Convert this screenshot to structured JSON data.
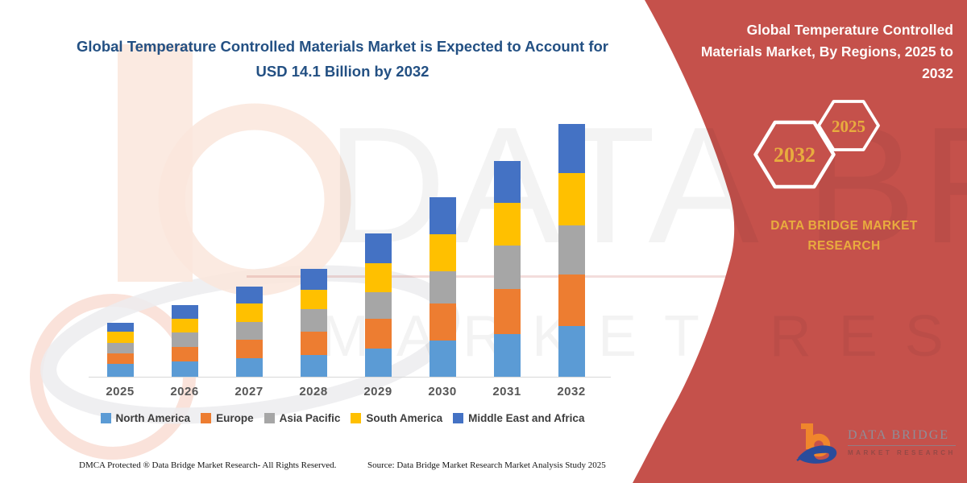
{
  "header": {
    "title": "Global Temperature Controlled Materials Market is Expected to Account for USD 14.1 Billion by 2032"
  },
  "sidebar": {
    "title": "Global Temperature Controlled Materials Market, By Regions, 2025 to 2032",
    "hexagons": {
      "large_year": "2032",
      "small_year": "2025"
    },
    "brand_heading": "DATA BRIDGE MARKET RESEARCH",
    "logo": {
      "name": "DATA BRIDGE",
      "subname": "MARKET RESEARCH"
    },
    "colors": {
      "background": "#C5514B",
      "accent_gold": "#E8AC3E"
    }
  },
  "watermark": {
    "line1": "DATA BRIDGE",
    "line2": "MARKET RESEARCH"
  },
  "footer": {
    "left": "DMCA Protected ® Data Bridge Market Research- All Rights Reserved.",
    "right": "Source: Data Bridge Market Research Market Analysis Study 2025"
  },
  "chart_data": {
    "type": "bar",
    "stacked": true,
    "title": "Global Temperature Controlled Materials Market is Expected to Account for USD 14.1 Billion by 2032",
    "categories": [
      "2025",
      "2026",
      "2027",
      "2028",
      "2029",
      "2030",
      "2031",
      "2032"
    ],
    "series": [
      {
        "name": "North America",
        "color": "#5B9BD5",
        "values": [
          0.7,
          0.85,
          1.05,
          1.2,
          1.55,
          2.0,
          2.4,
          2.85
        ]
      },
      {
        "name": "Europe",
        "color": "#ED7D31",
        "values": [
          0.6,
          0.8,
          1.0,
          1.3,
          1.7,
          2.1,
          2.5,
          2.85
        ]
      },
      {
        "name": "Asia Pacific",
        "color": "#A6A6A6",
        "values": [
          0.6,
          0.8,
          1.0,
          1.25,
          1.45,
          1.8,
          2.4,
          2.75
        ]
      },
      {
        "name": "South America",
        "color": "#FFC000",
        "values": [
          0.6,
          0.8,
          1.05,
          1.1,
          1.65,
          2.05,
          2.4,
          2.9
        ]
      },
      {
        "name": "Middle East and Africa",
        "color": "#4472C4",
        "values": [
          0.5,
          0.75,
          0.95,
          1.15,
          1.65,
          2.05,
          2.35,
          2.75
        ]
      }
    ],
    "totals_usd_billion": [
      3.0,
      4.0,
      5.05,
      6.0,
      8.0,
      10.0,
      12.05,
      14.1
    ],
    "xlabel": "",
    "ylabel": "",
    "ylim": [
      0,
      14.1
    ],
    "grid": false,
    "legend_position": "bottom"
  }
}
